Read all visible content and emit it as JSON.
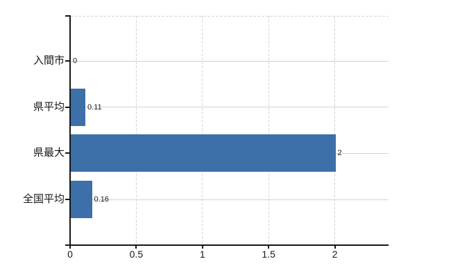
{
  "chart_data": {
    "type": "bar",
    "orientation": "horizontal",
    "title": "",
    "xlabel": "",
    "ylabel": "",
    "categories": [
      "入間市",
      "県平均",
      "県最大",
      "全国平均"
    ],
    "values": [
      0,
      0.11,
      2,
      0.16
    ],
    "value_labels": [
      "0",
      "0.11",
      "2",
      "0.16"
    ],
    "x_ticks": [
      0,
      0.5,
      1,
      1.5,
      2
    ],
    "x_tick_labels": [
      "0",
      "0.5",
      "1",
      "1.5",
      "2"
    ],
    "xlim": [
      0,
      2.4
    ],
    "grid": true,
    "legend": false,
    "colors": {
      "bar": "#3d6fa9",
      "axis": "#161616",
      "text": "#161616",
      "h_gridline": "#cfd5ca",
      "v_gridline": "#d8d5da",
      "background": "#ffffff"
    }
  }
}
